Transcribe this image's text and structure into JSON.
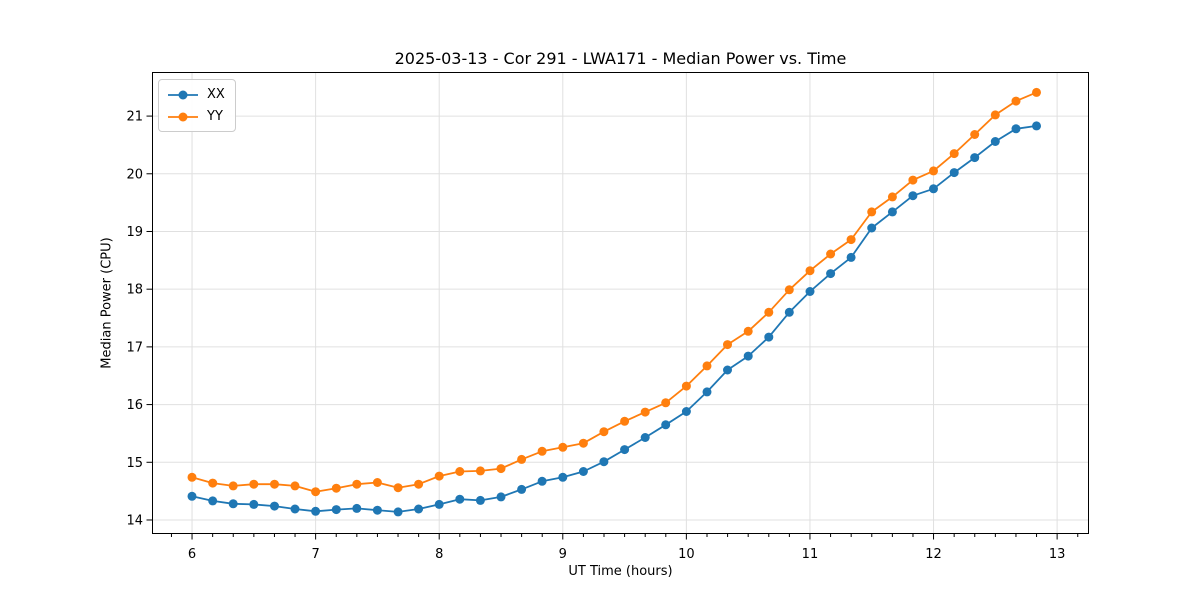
{
  "figure": {
    "title": "2025-03-13 - Cor 291 - LWA171 - Median Power vs. Time",
    "xlabel": "UT Time (hours)",
    "ylabel": "Median Power (CPU)"
  },
  "chart_data": {
    "type": "line",
    "title": "2025-03-13 - Cor 291 - LWA171 - Median Power vs. Time",
    "xlabel": "UT Time (hours)",
    "ylabel": "Median Power (CPU)",
    "xlim": [
      5.676,
      13.258
    ],
    "ylim": [
      13.757,
      21.764
    ],
    "x_ticks": [
      6,
      7,
      8,
      9,
      10,
      11,
      12,
      13
    ],
    "y_ticks": [
      14,
      15,
      16,
      17,
      18,
      19,
      20,
      21
    ],
    "x_minor_step": 0.16667,
    "grid": true,
    "grid_color": "#e0e0e0",
    "spine_color": "#000000",
    "legend_position": "upper-left",
    "x": [
      6,
      6.167,
      6.333,
      6.5,
      6.667,
      6.833,
      7,
      7.167,
      7.333,
      7.5,
      7.667,
      7.833,
      8,
      8.167,
      8.333,
      8.5,
      8.667,
      8.833,
      9,
      9.167,
      9.333,
      9.5,
      9.667,
      9.833,
      10,
      10.167,
      10.333,
      10.5,
      10.667,
      10.833,
      11,
      11.167,
      11.333,
      11.5,
      11.667,
      11.833,
      12,
      12.167,
      12.333,
      12.5,
      12.667,
      12.833
    ],
    "series": [
      {
        "name": "XX",
        "color": "#1f77b4",
        "values": [
          14.41,
          14.33,
          14.28,
          14.27,
          14.24,
          14.19,
          14.15,
          14.18,
          14.2,
          14.17,
          14.14,
          14.19,
          14.27,
          14.36,
          14.34,
          14.4,
          14.53,
          14.67,
          14.74,
          14.84,
          15.01,
          15.22,
          15.43,
          15.65,
          15.88,
          16.22,
          16.6,
          16.84,
          17.17,
          17.6,
          17.96,
          18.27,
          18.55,
          19.06,
          19.34,
          19.62,
          19.74,
          20.02,
          20.28,
          20.56,
          20.78,
          20.83
        ]
      },
      {
        "name": "YY",
        "color": "#ff7f0e",
        "values": [
          14.74,
          14.64,
          14.59,
          14.62,
          14.62,
          14.59,
          14.49,
          14.55,
          14.62,
          14.65,
          14.56,
          14.62,
          14.76,
          14.84,
          14.85,
          14.89,
          15.05,
          15.19,
          15.26,
          15.33,
          15.53,
          15.71,
          15.87,
          16.03,
          16.32,
          16.67,
          17.04,
          17.27,
          17.6,
          17.99,
          18.32,
          18.61,
          18.86,
          19.34,
          19.6,
          19.89,
          20.05,
          20.35,
          20.68,
          21.02,
          21.26,
          21.41
        ]
      }
    ]
  }
}
